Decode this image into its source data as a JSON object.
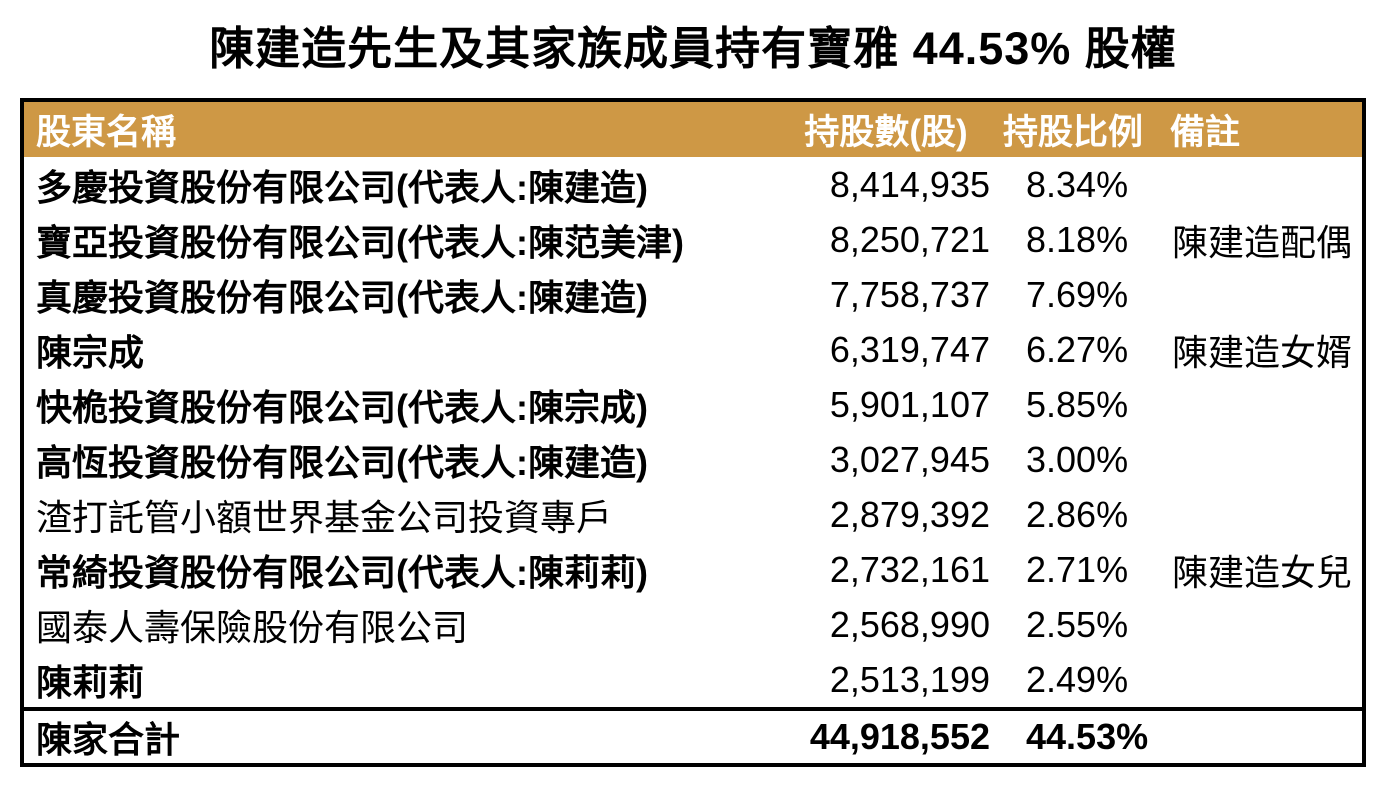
{
  "title": "陳建造先生及其家族成員持有寶雅 44.53% 股權",
  "chart_data": {
    "type": "table",
    "title": "陳建造先生及其家族成員持有寶雅 44.53% 股權",
    "columns": [
      "股東名稱",
      "持股數(股)",
      "持股比例",
      "備註"
    ],
    "rows": [
      {
        "name": "多慶投資股份有限公司(代表人:陳建造)",
        "shares": "8,414,935",
        "percent": "8.34%",
        "note": "",
        "bold": true
      },
      {
        "name": "寶亞投資股份有限公司(代表人:陳范美津)",
        "shares": "8,250,721",
        "percent": "8.18%",
        "note": "陳建造配偶",
        "bold": true
      },
      {
        "name": "真慶投資股份有限公司(代表人:陳建造)",
        "shares": "7,758,737",
        "percent": "7.69%",
        "note": "",
        "bold": true
      },
      {
        "name": "陳宗成",
        "shares": "6,319,747",
        "percent": "6.27%",
        "note": "陳建造女婿",
        "bold": true
      },
      {
        "name": "快桅投資股份有限公司(代表人:陳宗成)",
        "shares": "5,901,107",
        "percent": "5.85%",
        "note": "",
        "bold": true
      },
      {
        "name": "高恆投資股份有限公司(代表人:陳建造)",
        "shares": "3,027,945",
        "percent": "3.00%",
        "note": "",
        "bold": true
      },
      {
        "name": "渣打託管小額世界基金公司投資專戶",
        "shares": "2,879,392",
        "percent": "2.86%",
        "note": "",
        "bold": false
      },
      {
        "name": "常綺投資股份有限公司(代表人:陳莉莉)",
        "shares": "2,732,161",
        "percent": "2.71%",
        "note": "陳建造女兒",
        "bold": true
      },
      {
        "name": "國泰人壽保險股份有限公司",
        "shares": "2,568,990",
        "percent": "2.55%",
        "note": "",
        "bold": false
      },
      {
        "name": "陳莉莉",
        "shares": "2,513,199",
        "percent": "2.49%",
        "note": "",
        "bold": true
      }
    ],
    "total": {
      "name": "陳家合計",
      "shares": "44,918,552",
      "percent": "44.53%",
      "note": ""
    },
    "layout": {
      "header_row": true,
      "total_row": true,
      "grid": "outer-border-only"
    }
  },
  "colors": {
    "header_bg": "#CE9845",
    "header_text": "#FFFFFF",
    "border": "#000000",
    "text": "#000000",
    "background": "#FFFFFF"
  }
}
